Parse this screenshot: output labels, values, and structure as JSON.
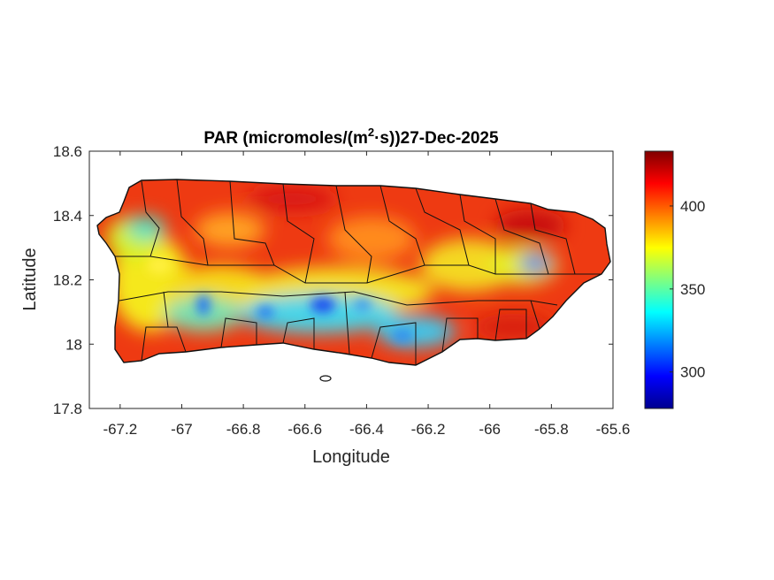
{
  "chart_data": {
    "type": "heatmap",
    "title": "PAR (micromoles/(m",
    "title_sup": "2",
    "title_tail": "·s))27-Dec-2025",
    "xlabel": "Longitude",
    "ylabel": "Latitude",
    "xlim": [
      -67.3,
      -65.6
    ],
    "ylim": [
      17.8,
      18.6
    ],
    "xticks": [
      "-67.2",
      "-67",
      "-66.8",
      "-66.6",
      "-66.4",
      "-66.2",
      "-66",
      "-65.8",
      "-65.6"
    ],
    "yticks": [
      "18.6",
      "18.4",
      "18.2",
      "18"
    ],
    "ytick_bottom": "17.8",
    "colorbar": {
      "range": [
        278,
        433
      ],
      "colormap": "jet",
      "ticks": [
        "400",
        "350",
        "300"
      ]
    },
    "grid": false
  }
}
